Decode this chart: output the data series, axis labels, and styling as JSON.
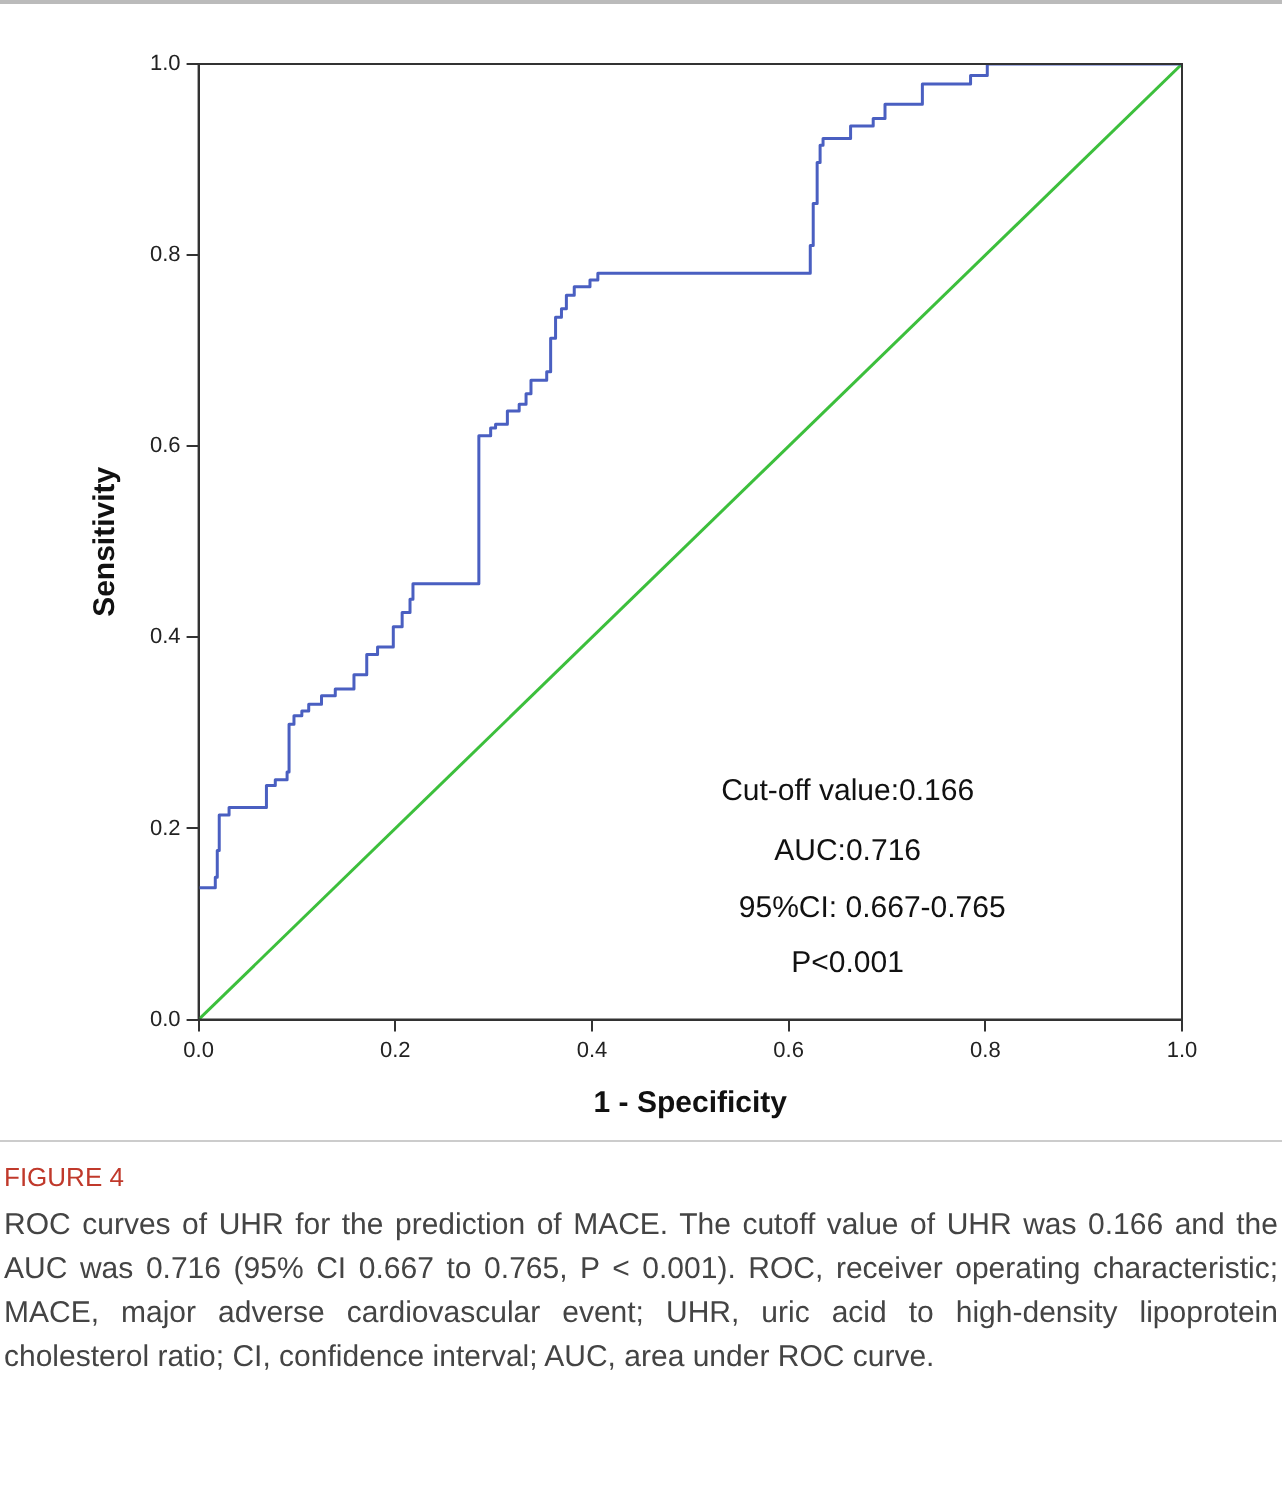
{
  "chart_data": {
    "type": "step",
    "xlabel": "1 - Specificity",
    "ylabel": "Sensitivity",
    "xlim": [
      0,
      1
    ],
    "ylim": [
      0,
      1
    ],
    "xticks": [
      {
        "value": 0,
        "label": "0.0"
      },
      {
        "value": 0.2,
        "label": "0.2"
      },
      {
        "value": 0.4,
        "label": "0.4"
      },
      {
        "value": 0.6,
        "label": "0.6"
      },
      {
        "value": 0.8,
        "label": "0.8"
      },
      {
        "value": 1,
        "label": "1.0"
      }
    ],
    "yticks": [
      {
        "value": 0,
        "label": "0.0"
      },
      {
        "value": 0.2,
        "label": "0.2"
      },
      {
        "value": 0.4,
        "label": "0.4"
      },
      {
        "value": 0.6,
        "label": "0.6"
      },
      {
        "value": 0.8,
        "label": "0.8"
      },
      {
        "value": 1,
        "label": "1.0"
      }
    ],
    "grid": false,
    "legend": false,
    "marker": "none",
    "series": [
      {
        "color": "#4a5fc1",
        "x": [
          0,
          0.017,
          0.019,
          0.021,
          0.031,
          0.069,
          0.078,
          0.09,
          0.092,
          0.097,
          0.105,
          0.112,
          0.125,
          0.139,
          0.158,
          0.171,
          0.182,
          0.198,
          0.207,
          0.215,
          0.218,
          0.285,
          0.297,
          0.302,
          0.314,
          0.326,
          0.333,
          0.338,
          0.354,
          0.358,
          0.363,
          0.369,
          0.374,
          0.382,
          0.398,
          0.406,
          0.622,
          0.625,
          0.629,
          0.632,
          0.635,
          0.663,
          0.686,
          0.698,
          0.736,
          0.785,
          0.802,
          1
        ],
        "values": [
          0.138,
          0.149,
          0.177,
          0.214,
          0.222,
          0.245,
          0.251,
          0.259,
          0.309,
          0.318,
          0.323,
          0.33,
          0.339,
          0.346,
          0.361,
          0.382,
          0.39,
          0.411,
          0.426,
          0.44,
          0.456,
          0.611,
          0.619,
          0.623,
          0.637,
          0.644,
          0.655,
          0.669,
          0.678,
          0.713,
          0.735,
          0.744,
          0.758,
          0.767,
          0.774,
          0.781,
          0.81,
          0.854,
          0.897,
          0.915,
          0.922,
          0.935,
          0.943,
          0.958,
          0.979,
          0.988,
          1,
          1
        ]
      },
      {
        "type": "line",
        "color": "#3cbf3c",
        "x": [
          0,
          1
        ],
        "values": [
          0,
          1
        ]
      }
    ],
    "annotations": [
      "Cut-off value:0.166",
      "AUC:0.716",
      "95%CI: 0.667-0.765",
      "P<0.001",
      "FIGURE 4",
      "ROC curves of UHR for the prediction of MACE. The cutoff value of UHR was 0.166 and the AUC was 0.716 (95% CI 0.667 to 0.765, P < 0.001). ROC, receiver operating characteristic; MACE, major adverse cardiovascular event; UHR, uric acid to high-density lipoprotein cholesterol ratio; CI, confidence interval; AUC, area under ROC curve."
    ]
  }
}
